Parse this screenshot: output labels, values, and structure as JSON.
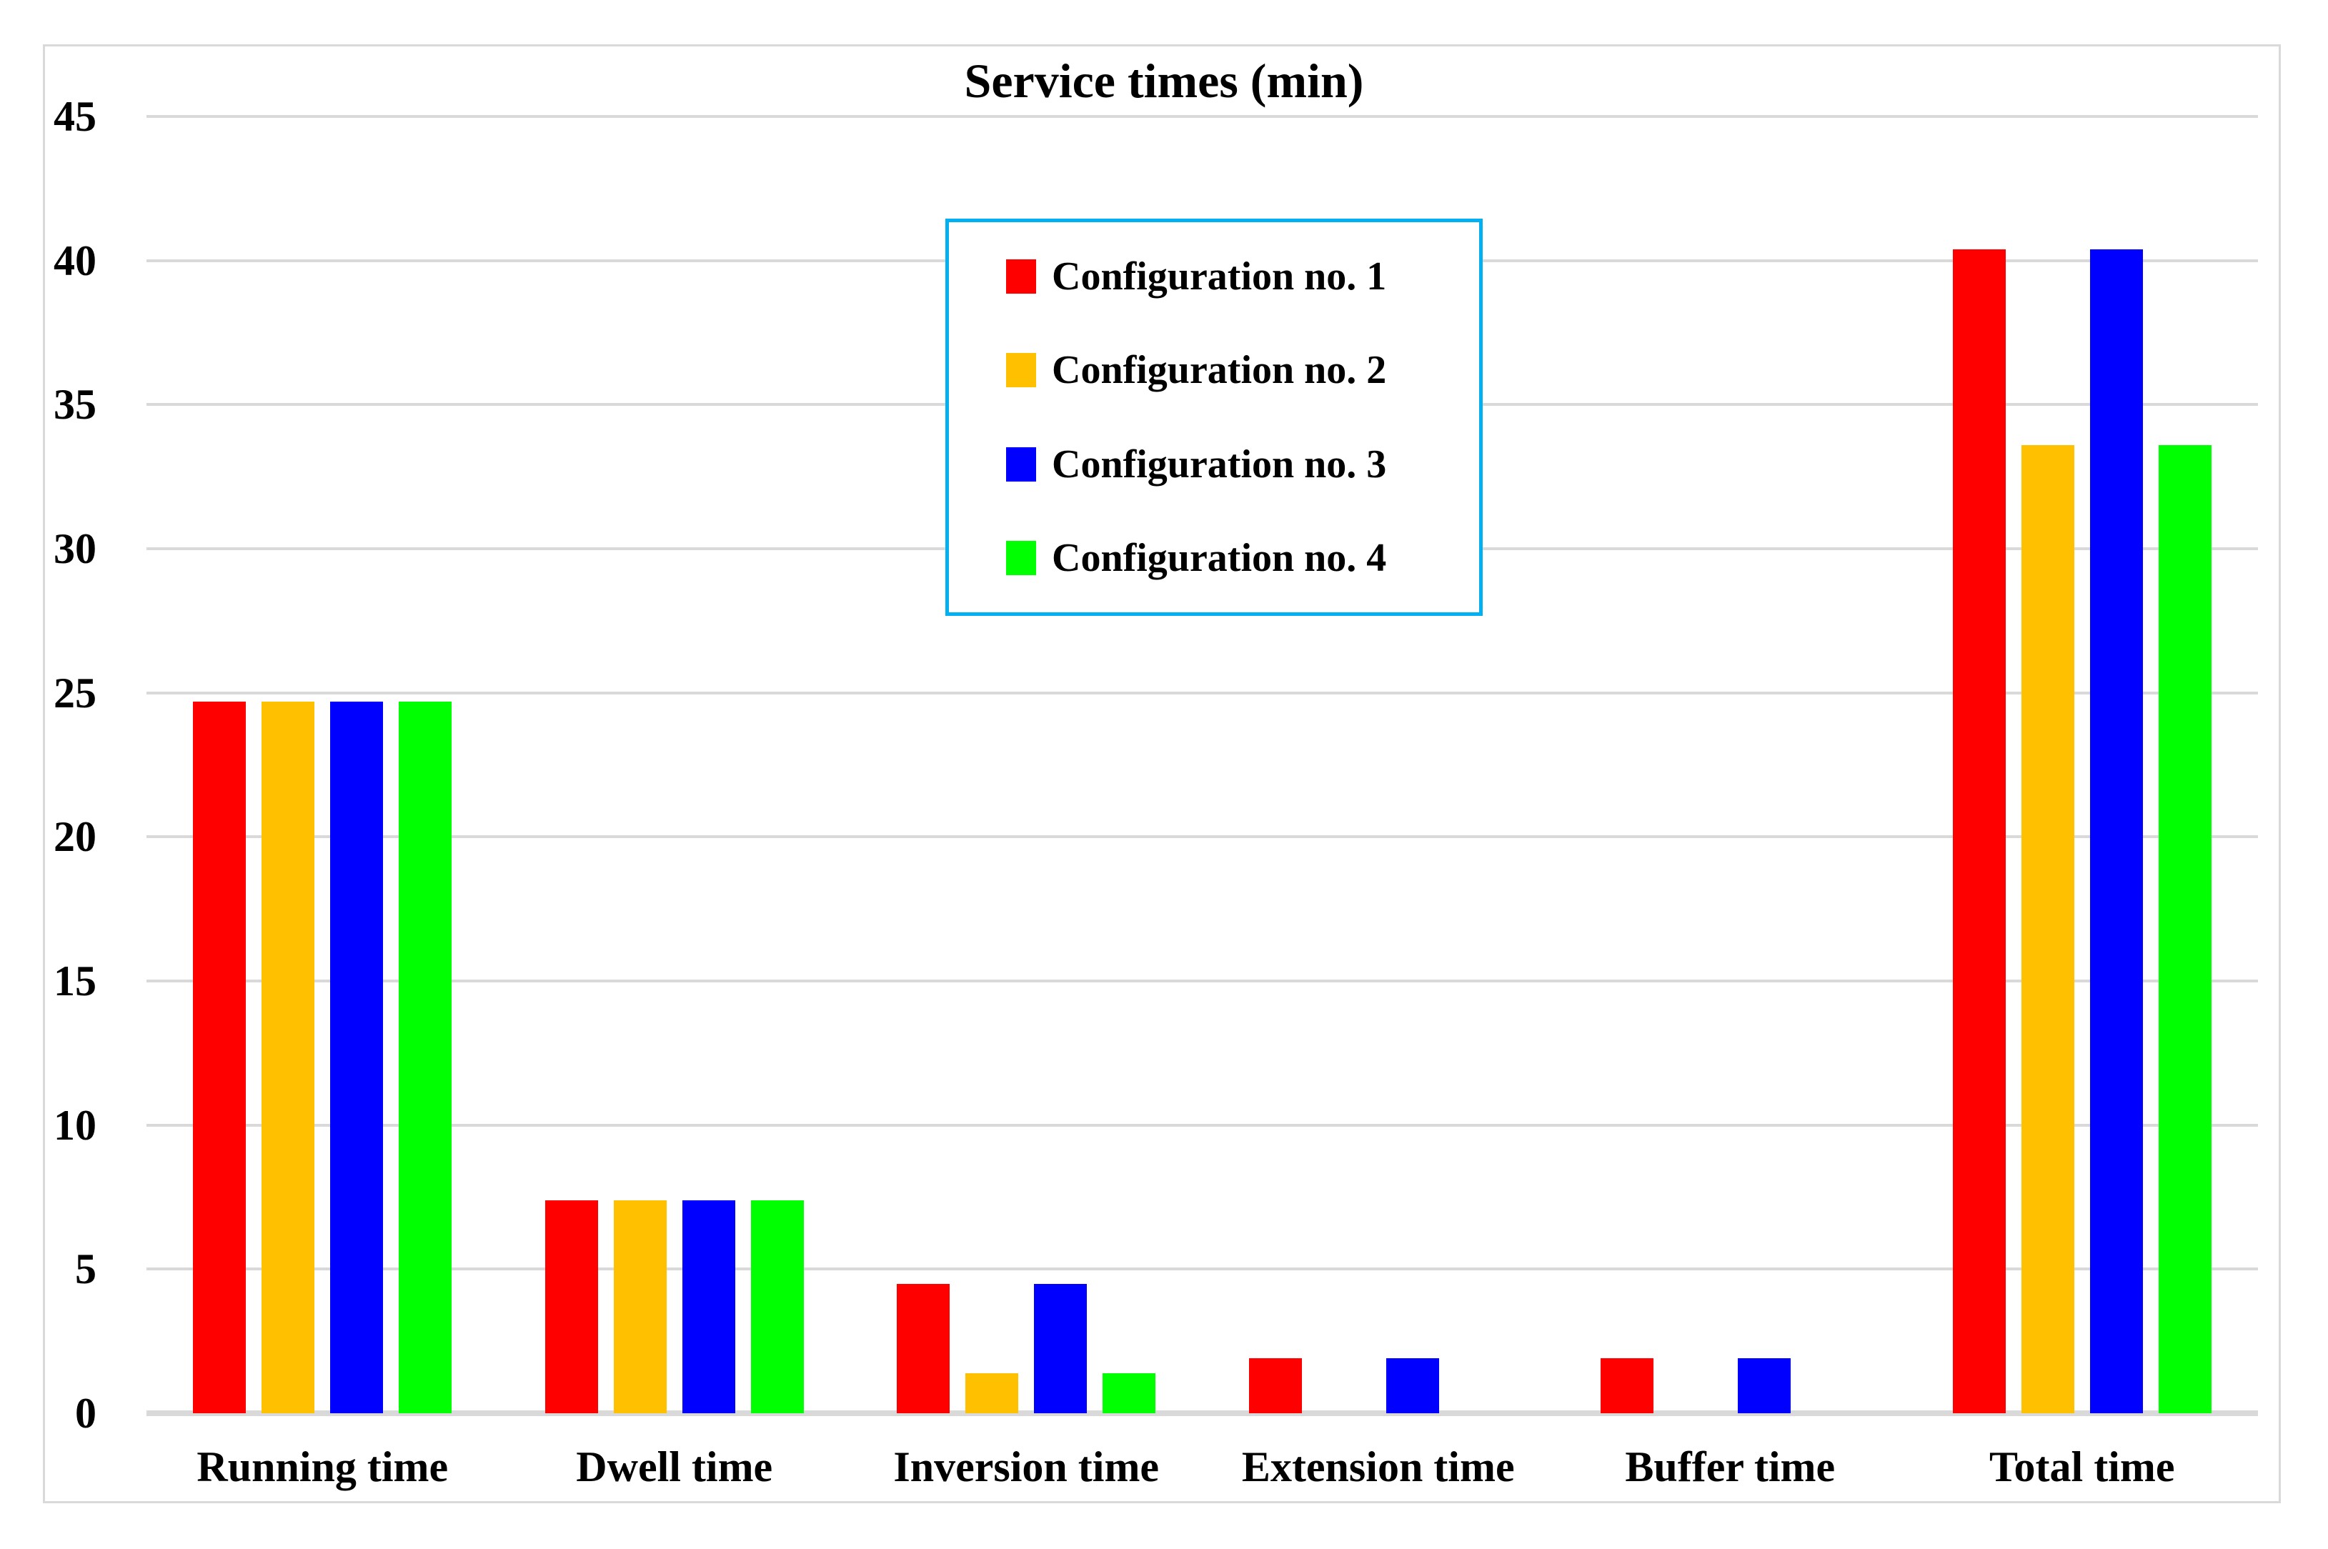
{
  "title": "Service times (min)",
  "legend": {
    "border_color": "#00B0F0",
    "position": "top-center",
    "items": [
      {
        "label": "Configuration no. 1",
        "color": "#FF0000"
      },
      {
        "label": "Configuration no. 2",
        "color": "#FFC000"
      },
      {
        "label": "Configuration no. 3",
        "color": "#0000FF"
      },
      {
        "label": "Configuration no. 4",
        "color": "#00FF00"
      }
    ]
  },
  "axis": {
    "y_min": 0,
    "y_max": 45,
    "y_tick_step": 5,
    "gridline_color": "#D9D9D9",
    "frame_color": "#D9D9D9"
  },
  "chart_data": {
    "type": "bar",
    "title": "Service times (min)",
    "categories": [
      "Running time",
      "Dwell time",
      "Inversion time",
      "Extension time",
      "Buffer time",
      "Total time"
    ],
    "series": [
      {
        "name": "Configuration no. 1",
        "color": "#FF0000",
        "values": [
          24.7,
          7.4,
          4.5,
          1.9,
          1.9,
          40.4
        ]
      },
      {
        "name": "Configuration no. 2",
        "color": "#FFC000",
        "values": [
          24.7,
          7.4,
          1.4,
          0,
          0,
          33.6
        ]
      },
      {
        "name": "Configuration no. 3",
        "color": "#0000FF",
        "values": [
          24.7,
          7.4,
          4.5,
          1.9,
          1.9,
          40.4
        ]
      },
      {
        "name": "Configuration no. 4",
        "color": "#00FF00",
        "values": [
          24.7,
          7.4,
          1.4,
          0,
          0,
          33.6
        ]
      }
    ],
    "xlabel": "",
    "ylabel": "",
    "ylim": [
      0,
      45
    ],
    "grid": true,
    "legend_position": "top-center"
  }
}
